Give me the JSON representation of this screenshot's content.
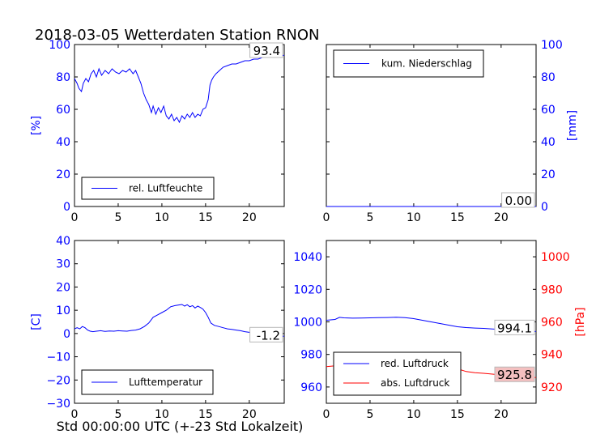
{
  "figure": {
    "title": "2018-03-05 Wetterdaten Station RNON",
    "xlabel": "Std 00:00:00 UTC (+-23 Std Lokalzeit)"
  },
  "colors": {
    "blue": "#0000ff",
    "red": "#ff0000",
    "pink_box": "#f4c0c0",
    "black": "#000000"
  },
  "chart_data": [
    {
      "type": "line",
      "name": "humidity",
      "ylabel": "[%]",
      "xlim": [
        0,
        24
      ],
      "ylim": [
        0,
        100
      ],
      "xticks": [
        "0",
        "5",
        "10",
        "15",
        "20"
      ],
      "yticks": [
        "0",
        "20",
        "40",
        "60",
        "80",
        "100"
      ],
      "legend": {
        "entries": [
          "rel. Luftfeuchte"
        ],
        "placement": "lower-left"
      },
      "annotation": "93.4",
      "series": [
        {
          "name": "rel. Luftfeuchte",
          "color": "#0000ff",
          "x": [
            0,
            0.3,
            0.5,
            0.8,
            1.0,
            1.3,
            1.6,
            1.9,
            2.2,
            2.5,
            2.8,
            3.1,
            3.5,
            3.9,
            4.3,
            4.7,
            5.1,
            5.5,
            5.9,
            6.3,
            6.7,
            7.0,
            7.3,
            7.6,
            7.9,
            8.2,
            8.5,
            8.8,
            9.0,
            9.3,
            9.6,
            9.9,
            10.2,
            10.5,
            10.8,
            11.1,
            11.4,
            11.7,
            12.0,
            12.3,
            12.6,
            12.9,
            13.2,
            13.5,
            13.8,
            14.1,
            14.4,
            14.7,
            15.0,
            15.3,
            15.5,
            15.7,
            15.9,
            16.2,
            16.6,
            17.0,
            17.5,
            18.0,
            18.5,
            19.0,
            19.5,
            20.0,
            20.5,
            21.0,
            21.5,
            22.0,
            22.5,
            23.0,
            23.5,
            24.0
          ],
          "y": [
            79,
            76,
            73,
            71,
            76,
            79,
            77,
            82,
            84,
            80,
            85,
            81,
            84,
            82,
            85,
            83,
            82,
            84,
            83,
            85,
            82,
            84,
            80,
            76,
            70,
            66,
            63,
            58,
            62,
            57,
            61,
            58,
            62,
            56,
            54,
            57,
            53,
            55,
            52,
            56,
            54,
            57,
            55,
            58,
            55,
            57,
            56,
            60,
            61,
            66,
            75,
            78,
            80,
            82,
            84,
            86,
            87,
            88,
            88,
            89,
            90,
            90,
            91,
            91,
            92,
            92,
            92,
            93,
            93,
            93.4
          ]
        }
      ]
    },
    {
      "type": "line",
      "name": "precipitation",
      "ylabel": "[mm]",
      "xlim": [
        0,
        24
      ],
      "ylim": [
        0,
        100
      ],
      "xticks": [
        "0",
        "5",
        "10",
        "15",
        "20"
      ],
      "yticks": [
        "0",
        "20",
        "40",
        "60",
        "80",
        "100"
      ],
      "legend": {
        "entries": [
          "kum. Niederschlag"
        ],
        "placement": "upper-left"
      },
      "annotation": "0.00",
      "series": [
        {
          "name": "kum. Niederschlag",
          "color": "#0000ff",
          "x": [
            0,
            24
          ],
          "y": [
            0,
            0
          ]
        }
      ]
    },
    {
      "type": "line",
      "name": "temperature",
      "ylabel": "[C]",
      "xlim": [
        0,
        24
      ],
      "ylim": [
        -30,
        40
      ],
      "xticks": [
        "0",
        "5",
        "10",
        "15",
        "20"
      ],
      "yticks": [
        "−30",
        "−20",
        "−10",
        "0",
        "10",
        "20",
        "30",
        "40"
      ],
      "legend": {
        "entries": [
          "Lufttemperatur"
        ],
        "placement": "lower-left"
      },
      "annotation": "-1.2",
      "series": [
        {
          "name": "Lufttemperatur",
          "color": "#0000ff",
          "x": [
            0,
            0.3,
            0.6,
            0.9,
            1.2,
            1.5,
            1.8,
            2.1,
            2.5,
            3.0,
            3.5,
            4.0,
            4.5,
            5.0,
            5.5,
            6.0,
            6.5,
            7.0,
            7.5,
            8.0,
            8.5,
            9.0,
            9.5,
            10.0,
            10.5,
            11.0,
            11.5,
            12.0,
            12.3,
            12.6,
            12.9,
            13.2,
            13.5,
            13.8,
            14.1,
            14.4,
            14.7,
            15.0,
            15.3,
            15.6,
            16.0,
            16.5,
            17.0,
            17.5,
            18.0,
            18.5,
            19.0,
            19.5,
            20.0,
            20.5,
            21.0,
            21.5,
            22.0,
            22.5,
            23.0,
            23.5,
            24.0
          ],
          "y": [
            2,
            2.5,
            2,
            3,
            2.5,
            1.5,
            1,
            0.8,
            1,
            1.2,
            0.9,
            1.1,
            1,
            1.2,
            1.1,
            1,
            1.3,
            1.5,
            2,
            3,
            4.5,
            7,
            8,
            9,
            10,
            11.5,
            12,
            12.3,
            12.5,
            11.8,
            12.4,
            11.5,
            12,
            11,
            11.8,
            11.2,
            10.5,
            9,
            7,
            4.5,
            3.5,
            3,
            2.5,
            2,
            1.8,
            1.5,
            1.2,
            0.8,
            0.5,
            0.2,
            0,
            -0.3,
            -0.5,
            -0.8,
            -1,
            -1.1,
            -1.2
          ]
        }
      ]
    },
    {
      "type": "line",
      "name": "pressure",
      "ylabel_right": "[hPa]",
      "xlim": [
        0,
        24
      ],
      "ylim_left": [
        950,
        1050
      ],
      "ylim_right": [
        910,
        1010
      ],
      "xticks": [
        "0",
        "5",
        "10",
        "15",
        "20"
      ],
      "yticks_left": [
        "960",
        "980",
        "1000",
        "1020",
        "1040"
      ],
      "yticks_right": [
        "920",
        "940",
        "960",
        "980",
        "1000"
      ],
      "legend": {
        "entries": [
          "red. Luftdruck",
          "abs. Luftdruck"
        ],
        "placement": "lower-left"
      },
      "annotation_left": "994.1",
      "annotation_right": "925.8",
      "series": [
        {
          "name": "red. Luftdruck",
          "color": "#0000ff",
          "axis": "left",
          "x": [
            0,
            1,
            1.5,
            2,
            3,
            4,
            5,
            6,
            7,
            8,
            9,
            10,
            11,
            12,
            13,
            14,
            15,
            16,
            17,
            18,
            19,
            20,
            21,
            22,
            23,
            24
          ],
          "y": [
            1001,
            1001.5,
            1002.8,
            1002.5,
            1002.3,
            1002.4,
            1002.5,
            1002.6,
            1002.7,
            1002.9,
            1002.6,
            1002,
            1001,
            1000,
            999,
            998,
            997,
            996.5,
            996.2,
            996,
            995.6,
            995.3,
            995,
            994.8,
            994.4,
            994.1
          ]
        },
        {
          "name": "abs. Luftdruck",
          "color": "#ff0000",
          "axis": "right",
          "x": [
            0,
            1,
            1.5,
            2,
            3,
            4,
            5,
            6,
            7,
            8,
            9,
            10,
            11,
            12,
            13,
            14,
            15,
            16,
            17,
            18,
            19,
            20,
            21,
            22,
            23,
            24
          ],
          "y": [
            932.5,
            933,
            933.8,
            933.5,
            933.7,
            934,
            934.3,
            934.6,
            935,
            935.3,
            935.1,
            934.8,
            934.2,
            933.8,
            933.2,
            932.6,
            931.2,
            929.5,
            928.8,
            928.4,
            927.9,
            927.4,
            926.9,
            926.5,
            926.1,
            925.8
          ]
        }
      ]
    }
  ]
}
